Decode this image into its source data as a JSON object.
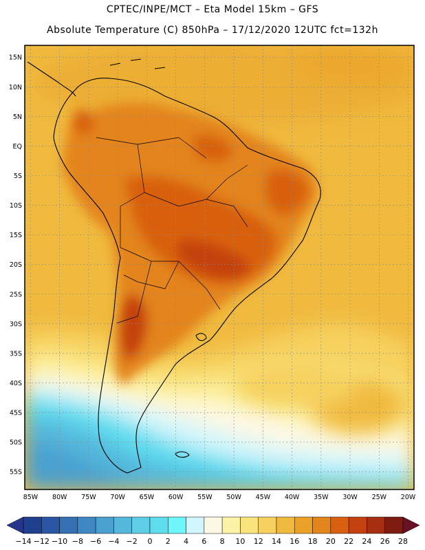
{
  "header": {
    "line1": "CPTEC/INPE/MCT –  Eta Model 15km – GFS",
    "line2": "Absolute Temperature (C) 850hPa – 17/12/2020 12UTC fct=132h"
  },
  "map": {
    "lon_range": [
      -86,
      -19
    ],
    "lat_range": [
      -58,
      17
    ],
    "x_ticks": [
      "85W",
      "80W",
      "75W",
      "70W",
      "65W",
      "60W",
      "55W",
      "50W",
      "45W",
      "40W",
      "35W",
      "30W",
      "25W",
      "20W"
    ],
    "x_tick_values": [
      -85,
      -80,
      -75,
      -70,
      -65,
      -60,
      -55,
      -50,
      -45,
      -40,
      -35,
      -30,
      -25,
      -20
    ],
    "y_ticks": [
      "15N",
      "10N",
      "5N",
      "EQ",
      "5S",
      "10S",
      "15S",
      "20S",
      "25S",
      "30S",
      "35S",
      "40S",
      "45S",
      "50S",
      "55S"
    ],
    "y_tick_values": [
      15,
      10,
      5,
      0,
      -5,
      -10,
      -15,
      -20,
      -25,
      -30,
      -35,
      -40,
      -45,
      -50,
      -55
    ]
  },
  "colorbar": {
    "labels": [
      "-14",
      "-12",
      "-10",
      "-8",
      "-6",
      "-4",
      "-2",
      "0",
      "2",
      "4",
      "6",
      "8",
      "10",
      "12",
      "14",
      "16",
      "18",
      "20",
      "22",
      "24",
      "26",
      "28"
    ],
    "colors": [
      "#1f3f8f",
      "#2a56a3",
      "#3570b5",
      "#3f87c2",
      "#4aa0cf",
      "#55b7db",
      "#5fcde6",
      "#5fdcee",
      "#6ef6fb",
      "#d0f5fc",
      "#fdf8e4",
      "#fcf2a6",
      "#f9e37c",
      "#f6d15f",
      "#f0ba3f",
      "#e9a128",
      "#e3841c",
      "#d86010",
      "#c44210",
      "#a52f10",
      "#7d1c10"
    ],
    "left_color": "#27358a",
    "right_color": "#6a1024"
  }
}
